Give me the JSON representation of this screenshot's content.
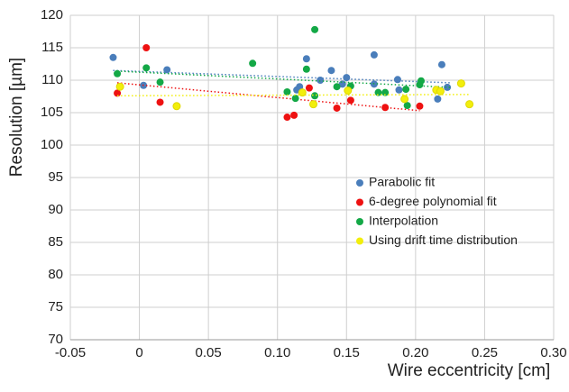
{
  "chart_data": {
    "type": "scatter",
    "x_label": "Wire eccentricity [cm]",
    "y_label": "Resolution [µm]",
    "xlim": [
      -0.05,
      0.3
    ],
    "xticks": [
      -0.05,
      0,
      0.05,
      {
        "value": 0.1,
        "label": "0.10"
      },
      0.15,
      {
        "value": 0.2,
        "label": "0.20"
      },
      0.25,
      {
        "value": 0.3,
        "label": "0.30"
      }
    ],
    "ylim": [
      70,
      120
    ],
    "yticks": [
      70,
      75,
      80,
      85,
      90,
      95,
      100,
      105,
      110,
      115,
      120
    ],
    "grid": true,
    "legend": "right",
    "series": [
      {
        "name": "Parabolic fit",
        "color": "#4a7ebb",
        "x": [
          -0.019,
          0.003,
          0.02,
          0.121,
          0.116,
          0.114,
          0.131,
          0.139,
          0.15,
          0.147,
          0.17,
          0.17,
          0.187,
          0.188,
          0.219,
          0.223,
          0.216
        ],
        "values": [
          113.5,
          109.2,
          111.6,
          113.3,
          109.0,
          108.5,
          110.0,
          111.5,
          110.4,
          109.4,
          113.9,
          109.4,
          110.1,
          108.5,
          112.4,
          108.9,
          107.1
        ],
        "trend": {
          "x": [
            -0.019,
            0.225
          ],
          "values": [
            111.5,
            109.6
          ]
        }
      },
      {
        "name": "6-degree polynomial fit",
        "color": "#ee1111",
        "x": [
          0.005,
          -0.016,
          0.015,
          0.107,
          0.112,
          0.123,
          0.143,
          0.153,
          0.178,
          0.203
        ],
        "values": [
          115.0,
          108.0,
          106.6,
          104.3,
          104.6,
          108.8,
          105.7,
          106.9,
          105.8,
          106.0
        ],
        "trend": {
          "x": [
            -0.016,
            0.203
          ],
          "values": [
            109.6,
            105.3
          ]
        }
      },
      {
        "name": "Interpolation",
        "color": "#13a846",
        "x": [
          -0.016,
          0.005,
          0.015,
          0.082,
          0.127,
          0.121,
          0.107,
          0.113,
          0.127,
          0.143,
          0.153,
          0.173,
          0.178,
          0.193,
          0.194,
          0.204,
          0.203
        ],
        "values": [
          111.0,
          111.9,
          109.7,
          112.6,
          117.8,
          111.7,
          108.2,
          107.2,
          107.6,
          109.0,
          109.1,
          108.1,
          108.1,
          108.6,
          106.1,
          109.9,
          109.3
        ],
        "trend": {
          "x": [
            -0.016,
            0.225
          ],
          "values": [
            111.4,
            108.9
          ]
        }
      },
      {
        "name": "Using drift time distribution",
        "color": "#f2ee0c",
        "x": [
          -0.014,
          0.027,
          0.118,
          0.126,
          0.151,
          0.192,
          0.215,
          0.218,
          0.233,
          0.239
        ],
        "values": [
          109.0,
          106.0,
          108.1,
          106.3,
          108.4,
          107.1,
          108.5,
          108.3,
          109.5,
          106.3
        ],
        "trend": {
          "x": [
            -0.016,
            0.239
          ],
          "values": [
            107.6,
            107.8
          ]
        }
      }
    ]
  }
}
